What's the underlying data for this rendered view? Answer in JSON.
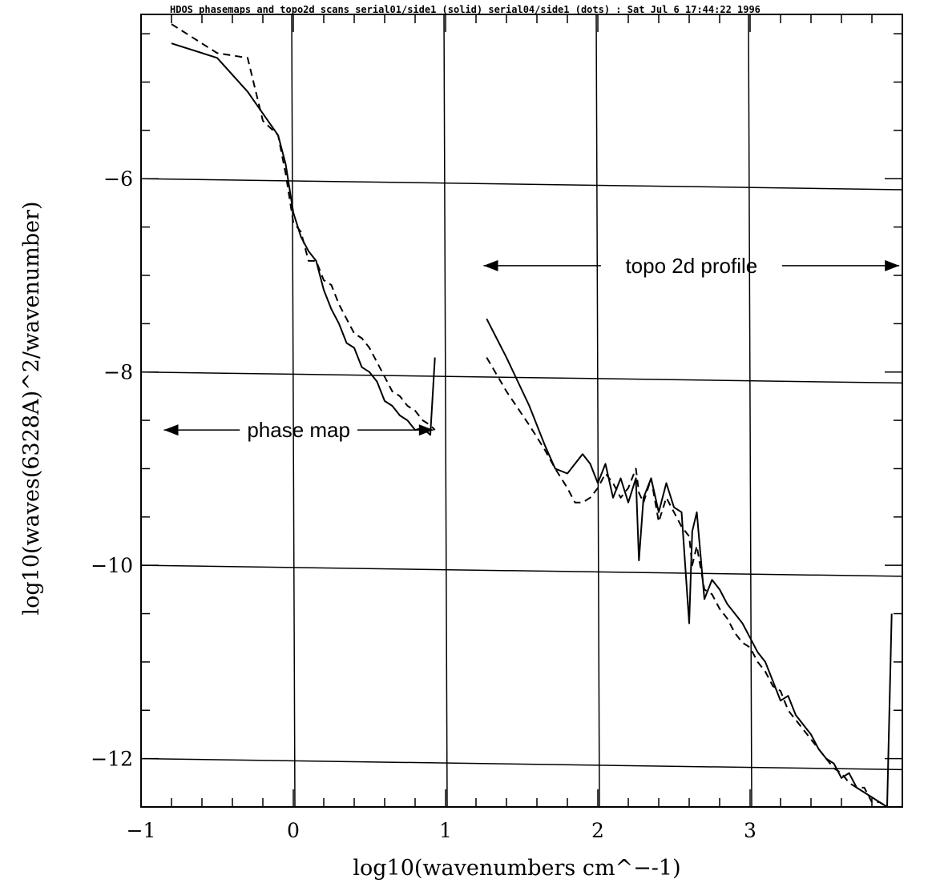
{
  "chart_data": {
    "type": "line",
    "title": "HDOS phasemaps and topo2d scans serial01/side1 (solid) serial04/side1 (dots) : Sat Jul  6 17:44:22 1996",
    "xlabel": "log10(wavenumbers cm^−-1)",
    "ylabel": "log10(waves(6328A)^2/wavenumber)",
    "xlim": [
      -1.0,
      4.0
    ],
    "ylim": [
      -12.5,
      -4.3
    ],
    "x_major_ticks": [
      -1,
      0,
      1,
      2,
      3
    ],
    "x_tick_labels": [
      "−1",
      "0",
      "1",
      "2",
      "3"
    ],
    "y_major_ticks": [
      -6,
      -8,
      -10,
      -12
    ],
    "y_tick_labels": [
      "−6",
      "−8",
      "−10",
      "−12"
    ],
    "grid": true,
    "annotations": [
      {
        "text": "phase map",
        "x_from": -0.85,
        "x_to": 0.92,
        "y": -8.6
      },
      {
        "text": "topo 2d profile",
        "x_from": 1.25,
        "x_to": 3.98,
        "y": -6.9
      }
    ],
    "series": [
      {
        "style": "solid",
        "x": [
          -0.8,
          -0.5,
          -0.3,
          -0.1,
          -0.05,
          0.0,
          0.05,
          0.1,
          0.15,
          0.2,
          0.25,
          0.3,
          0.35,
          0.4,
          0.45,
          0.5,
          0.55,
          0.6,
          0.65,
          0.7,
          0.75,
          0.8,
          0.85,
          0.9,
          0.93
        ],
        "y": [
          -4.6,
          -4.75,
          -5.1,
          -5.55,
          -5.85,
          -6.35,
          -6.6,
          -6.75,
          -6.85,
          -7.15,
          -7.35,
          -7.5,
          -7.7,
          -7.75,
          -7.95,
          -8.0,
          -8.1,
          -8.3,
          -8.35,
          -8.45,
          -8.5,
          -8.6,
          -8.58,
          -8.65,
          -7.85
        ]
      },
      {
        "style": "dashed",
        "x": [
          -0.8,
          -0.5,
          -0.3,
          -0.2,
          -0.1,
          -0.05,
          0.0,
          0.05,
          0.1,
          0.15,
          0.2,
          0.25,
          0.3,
          0.35,
          0.4,
          0.45,
          0.5,
          0.55,
          0.6,
          0.65,
          0.7,
          0.75,
          0.8,
          0.85,
          0.9,
          0.93
        ],
        "y": [
          -4.4,
          -4.7,
          -4.75,
          -5.4,
          -5.55,
          -5.95,
          -6.45,
          -6.55,
          -6.85,
          -6.85,
          -7.05,
          -7.1,
          -7.3,
          -7.45,
          -7.6,
          -7.65,
          -7.75,
          -7.9,
          -8.05,
          -8.2,
          -8.25,
          -8.35,
          -8.4,
          -8.5,
          -8.55,
          -8.6
        ]
      },
      {
        "style": "solid",
        "x": [
          1.27,
          1.4,
          1.55,
          1.65,
          1.72,
          1.8,
          1.85,
          1.9,
          1.95,
          2.0,
          2.05,
          2.1,
          2.15,
          2.2,
          2.25,
          2.27,
          2.3,
          2.35,
          2.4,
          2.45,
          2.5,
          2.55,
          2.6,
          2.62,
          2.65,
          2.7,
          2.75,
          2.8,
          2.85,
          2.9,
          2.95,
          3.0,
          3.05,
          3.1,
          3.15,
          3.2,
          3.25,
          3.3,
          3.35,
          3.4,
          3.45,
          3.5,
          3.55,
          3.6,
          3.65,
          3.7,
          3.75,
          3.8,
          3.85,
          3.9,
          3.93
        ],
        "y": [
          -7.45,
          -7.85,
          -8.35,
          -8.75,
          -9.0,
          -9.05,
          -8.95,
          -8.85,
          -8.95,
          -9.15,
          -8.95,
          -9.3,
          -9.1,
          -9.35,
          -9.1,
          -9.95,
          -9.3,
          -9.1,
          -9.45,
          -9.15,
          -9.4,
          -9.45,
          -10.6,
          -9.65,
          -9.45,
          -10.35,
          -10.15,
          -10.25,
          -10.4,
          -10.5,
          -10.6,
          -10.75,
          -10.9,
          -11.0,
          -11.2,
          -11.4,
          -11.35,
          -11.55,
          -11.65,
          -11.75,
          -11.9,
          -12.0,
          -12.05,
          -12.2,
          -12.15,
          -12.3,
          -12.35,
          -12.4,
          -12.45,
          -12.5,
          -10.5
        ]
      },
      {
        "style": "dashed",
        "x": [
          1.27,
          1.4,
          1.55,
          1.65,
          1.72,
          1.8,
          1.85,
          1.9,
          1.95,
          2.0,
          2.05,
          2.1,
          2.15,
          2.2,
          2.25,
          2.27,
          2.3,
          2.35,
          2.4,
          2.45,
          2.5,
          2.55,
          2.6,
          2.62,
          2.65,
          2.7,
          2.75,
          2.8,
          2.85,
          2.9,
          2.95,
          3.0,
          3.05,
          3.1,
          3.15,
          3.2,
          3.25,
          3.3,
          3.35,
          3.4,
          3.45,
          3.5,
          3.55,
          3.6,
          3.65,
          3.7,
          3.75,
          3.8,
          3.85,
          3.9
        ],
        "y": [
          -7.85,
          -8.2,
          -8.55,
          -8.8,
          -9.0,
          -9.2,
          -9.35,
          -9.35,
          -9.3,
          -9.2,
          -9.05,
          -9.15,
          -9.3,
          -9.2,
          -9.0,
          -9.25,
          -9.35,
          -9.1,
          -9.55,
          -9.3,
          -9.45,
          -9.6,
          -9.7,
          -10.0,
          -9.8,
          -10.25,
          -10.3,
          -10.45,
          -10.55,
          -10.7,
          -10.8,
          -10.85,
          -11.0,
          -11.1,
          -11.25,
          -11.3,
          -11.5,
          -11.6,
          -11.7,
          -11.8,
          -11.9,
          -12.0,
          -12.1,
          -12.15,
          -12.25,
          -12.3,
          -12.3,
          -12.45,
          -12.45,
          -12.5
        ]
      }
    ]
  }
}
